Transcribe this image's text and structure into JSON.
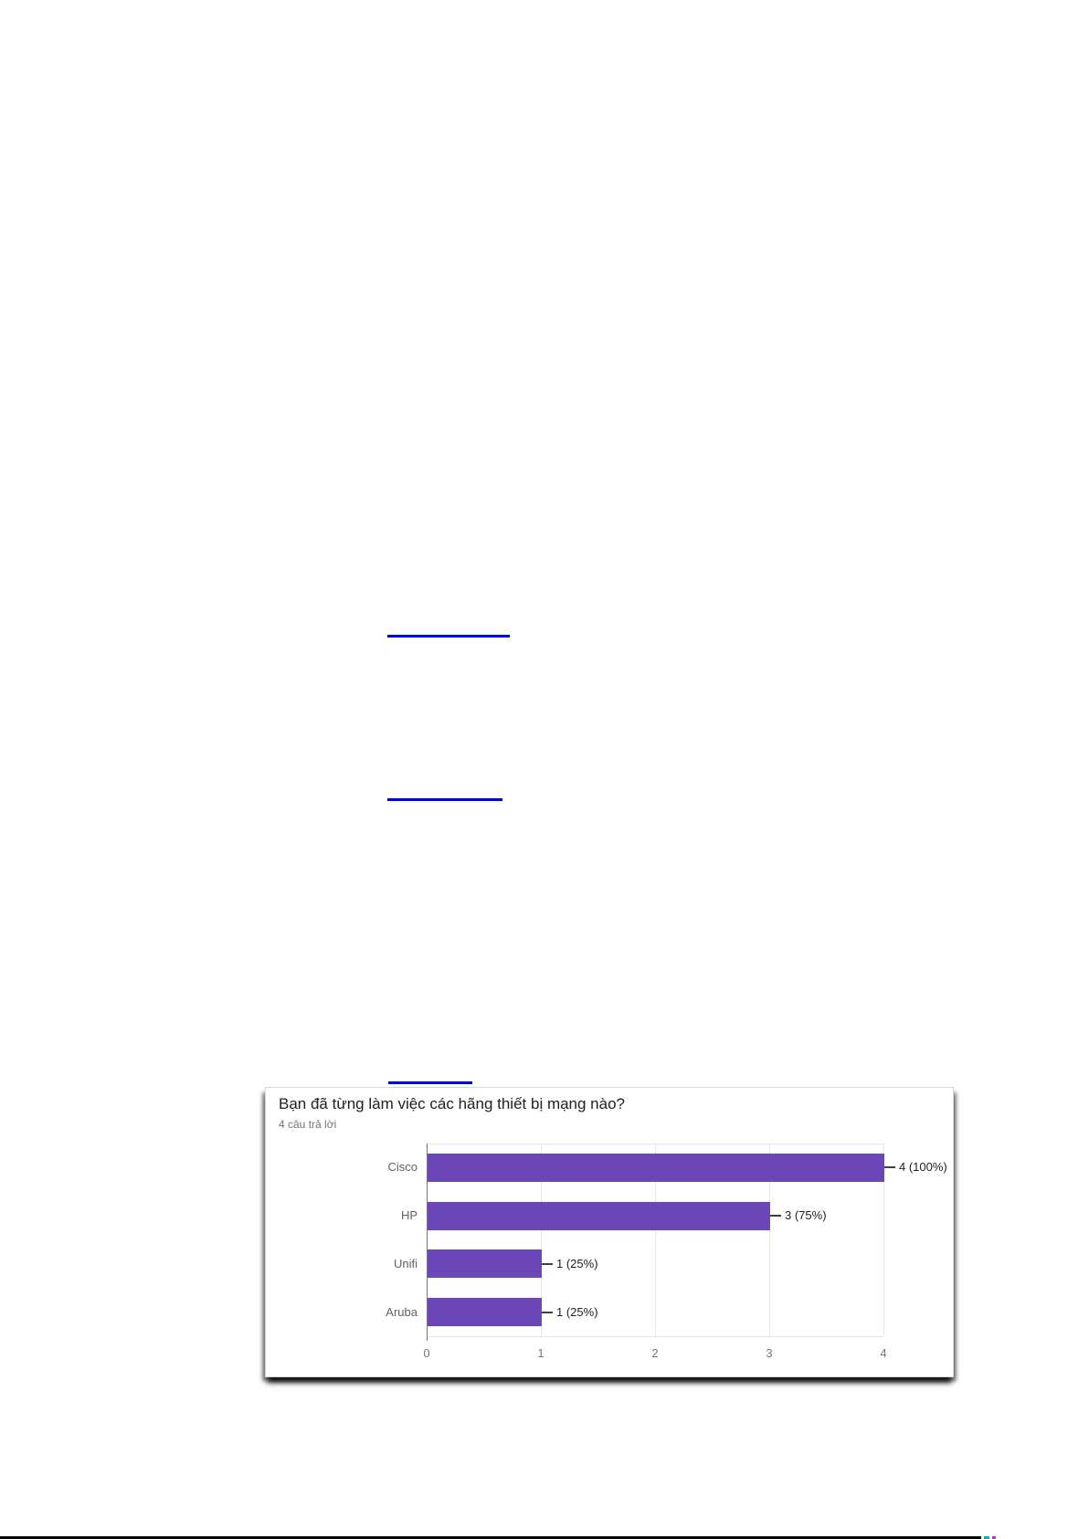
{
  "page": {
    "link_color": "#0000e6",
    "links": [
      {
        "label": ""
      },
      {
        "label": ""
      },
      {
        "label": ""
      }
    ],
    "bottom_edge_line_color": "#000000"
  },
  "chart_data": {
    "type": "bar",
    "orientation": "horizontal",
    "title": "Bạn đã từng làm việc các hãng thiết bị mạng nào?",
    "subtitle": "4 câu trả lời",
    "categories": [
      "Cisco",
      "HP",
      "Unifi",
      "Aruba"
    ],
    "values": [
      4,
      3,
      1,
      1
    ],
    "value_labels": [
      "4 (100%)",
      "3 (75%)",
      "1 (25%)",
      "1 (25%)"
    ],
    "xlim": [
      0,
      4
    ],
    "xticks": [
      0,
      1,
      2,
      3,
      4
    ],
    "grid": true,
    "legend": "none",
    "bar_color": "#6a46b6"
  }
}
